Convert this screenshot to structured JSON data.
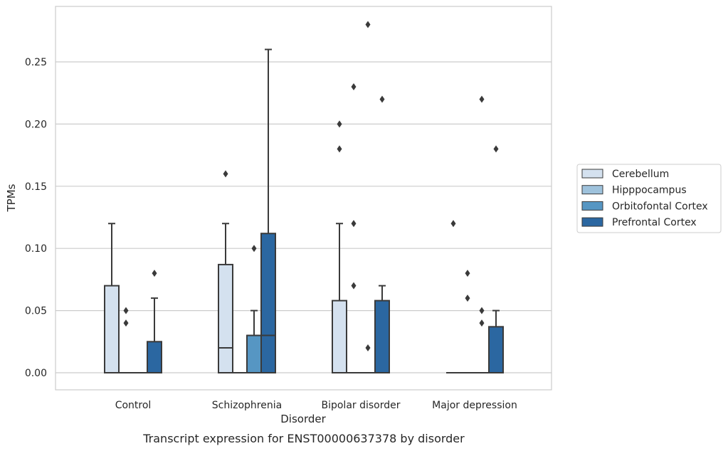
{
  "chart_data": {
    "type": "box",
    "xlabel": "Disorder",
    "ylabel": "TPMs",
    "caption": "Transcript expression for ENST00000637378 by disorder",
    "categories": [
      "Control",
      "Schizophrenia",
      "Bipolar disorder",
      "Major depression"
    ],
    "ylim": [
      -0.013,
      0.295
    ],
    "yticks": [
      0.0,
      0.05,
      0.1,
      0.15,
      0.2,
      0.25
    ],
    "ytick_labels": [
      "0.00",
      "0.05",
      "0.10",
      "0.15",
      "0.20",
      "0.25"
    ],
    "grid": true,
    "legend_position": "right",
    "series": [
      {
        "name": "Cerebellum",
        "color": "#d4e1ef",
        "boxes": [
          {
            "q1": 0.0,
            "median": 0.0,
            "q3": 0.07,
            "whislo": 0.0,
            "whishi": 0.12,
            "fliers": []
          },
          {
            "q1": 0.0,
            "median": 0.02,
            "q3": 0.087,
            "whislo": 0.0,
            "whishi": 0.12,
            "fliers": [
              0.16
            ]
          },
          {
            "q1": 0.0,
            "median": 0.0,
            "q3": 0.058,
            "whislo": 0.0,
            "whishi": 0.12,
            "fliers": [
              0.18,
              0.2
            ]
          },
          {
            "q1": 0.0,
            "median": 0.0,
            "q3": 0.0,
            "whislo": 0.0,
            "whishi": 0.0,
            "fliers": [
              0.12
            ]
          }
        ]
      },
      {
        "name": "Hipppocampus",
        "color": "#9ec2dc",
        "boxes": [
          {
            "q1": 0.0,
            "median": 0.0,
            "q3": 0.0,
            "whislo": 0.0,
            "whishi": 0.0,
            "fliers": [
              0.04,
              0.05
            ]
          },
          {
            "q1": 0.0,
            "median": 0.0,
            "q3": 0.0,
            "whislo": 0.0,
            "whishi": 0.0,
            "fliers": []
          },
          {
            "q1": 0.0,
            "median": 0.0,
            "q3": 0.0,
            "whislo": 0.0,
            "whishi": 0.0,
            "fliers": [
              0.07,
              0.12,
              0.23
            ]
          },
          {
            "q1": 0.0,
            "median": 0.0,
            "q3": 0.0,
            "whislo": 0.0,
            "whishi": 0.0,
            "fliers": [
              0.06,
              0.08
            ]
          }
        ]
      },
      {
        "name": "Orbitofontal Cortex",
        "color": "#5696c3",
        "boxes": [
          {
            "q1": 0.0,
            "median": 0.0,
            "q3": 0.0,
            "whislo": 0.0,
            "whishi": 0.0,
            "fliers": []
          },
          {
            "q1": 0.0,
            "median": 0.03,
            "q3": 0.03,
            "whislo": 0.0,
            "whishi": 0.05,
            "fliers": [
              0.1
            ]
          },
          {
            "q1": 0.0,
            "median": 0.0,
            "q3": 0.0,
            "whislo": 0.0,
            "whishi": 0.0,
            "fliers": [
              0.02,
              0.28
            ]
          },
          {
            "q1": 0.0,
            "median": 0.0,
            "q3": 0.0,
            "whislo": 0.0,
            "whishi": 0.0,
            "fliers": [
              0.04,
              0.05,
              0.22
            ]
          }
        ]
      },
      {
        "name": "Prefrontal Cortex",
        "color": "#2b67a1",
        "boxes": [
          {
            "q1": 0.0,
            "median": 0.0,
            "q3": 0.025,
            "whislo": 0.0,
            "whishi": 0.06,
            "fliers": [
              0.08
            ]
          },
          {
            "q1": 0.0,
            "median": 0.03,
            "q3": 0.112,
            "whislo": 0.0,
            "whishi": 0.26,
            "fliers": []
          },
          {
            "q1": 0.0,
            "median": 0.0,
            "q3": 0.058,
            "whislo": 0.0,
            "whishi": 0.07,
            "fliers": [
              0.22
            ]
          },
          {
            "q1": 0.0,
            "median": 0.0,
            "q3": 0.037,
            "whislo": 0.0,
            "whishi": 0.05,
            "fliers": [
              0.18
            ]
          }
        ]
      }
    ]
  }
}
